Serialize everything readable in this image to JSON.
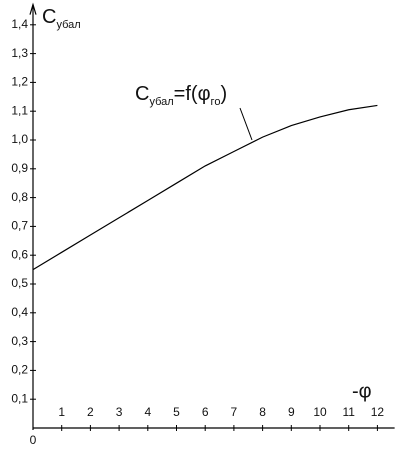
{
  "chart_data": {
    "type": "line",
    "y_label": [
      {
        "text": "C"
      },
      {
        "text": "убал",
        "sub": true
      }
    ],
    "x_label": "-φ",
    "origin_label": "0",
    "annotation": [
      {
        "text": "C"
      },
      {
        "text": "убал",
        "sub": true
      },
      {
        "text": "=f("
      },
      {
        "text": "φ"
      },
      {
        "text": "го",
        "sub": true
      },
      {
        "text": ")"
      }
    ],
    "x": [
      0,
      1,
      2,
      3,
      4,
      5,
      6,
      7,
      8,
      9,
      10,
      11,
      12
    ],
    "series": [
      {
        "color": "#000000",
        "values": [
          0.55,
          0.61,
          0.67,
          0.73,
          0.79,
          0.85,
          0.91,
          0.96,
          1.01,
          1.05,
          1.08,
          1.105,
          1.12
        ]
      }
    ],
    "xlim": [
      0,
      12.6
    ],
    "ylim": [
      0,
      1.47
    ],
    "xticks": [
      1,
      2,
      3,
      4,
      5,
      6,
      7,
      8,
      9,
      10,
      11,
      12
    ],
    "yticks": [
      {
        "value": 0.1,
        "label": "0,1"
      },
      {
        "value": 0.2,
        "label": "0,2"
      },
      {
        "value": 0.3,
        "label": "0,3"
      },
      {
        "value": 0.4,
        "label": "0,4"
      },
      {
        "value": 0.5,
        "label": "0,5"
      },
      {
        "value": 0.6,
        "label": "0,6"
      },
      {
        "value": 0.7,
        "label": "0,7"
      },
      {
        "value": 0.8,
        "label": "0,8"
      },
      {
        "value": 0.9,
        "label": "0,9"
      },
      {
        "value": 1.0,
        "label": "1,0"
      },
      {
        "value": 1.1,
        "label": "1,1"
      },
      {
        "value": 1.2,
        "label": "1,2"
      },
      {
        "value": 1.3,
        "label": "1,3"
      },
      {
        "value": 1.4,
        "label": "1,4"
      }
    ],
    "grid": false
  }
}
